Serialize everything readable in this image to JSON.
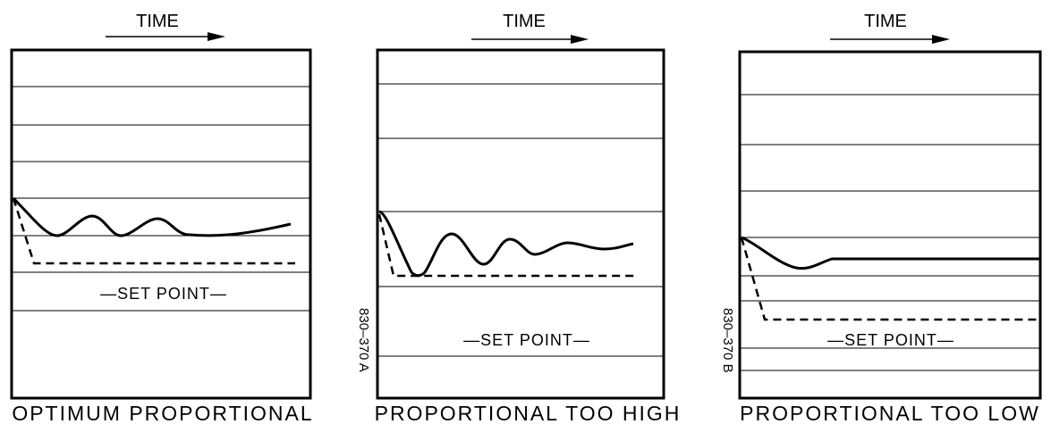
{
  "charts": [
    {
      "time_label": "TIME",
      "set_point_label": "—SET POINT—",
      "caption": "OPTIMUM PROPORTIONAL",
      "code": ""
    },
    {
      "time_label": "TIME",
      "set_point_label": "—SET POINT—",
      "caption": "PROPORTIONAL TOO HIGH",
      "code": "830–370 A"
    },
    {
      "time_label": "TIME",
      "set_point_label": "—SET POINT—",
      "caption": "PROPORTIONAL TOO LOW",
      "code": "830–370 B"
    }
  ],
  "colors": {
    "ink": "#000000",
    "background": "#ffffff"
  }
}
